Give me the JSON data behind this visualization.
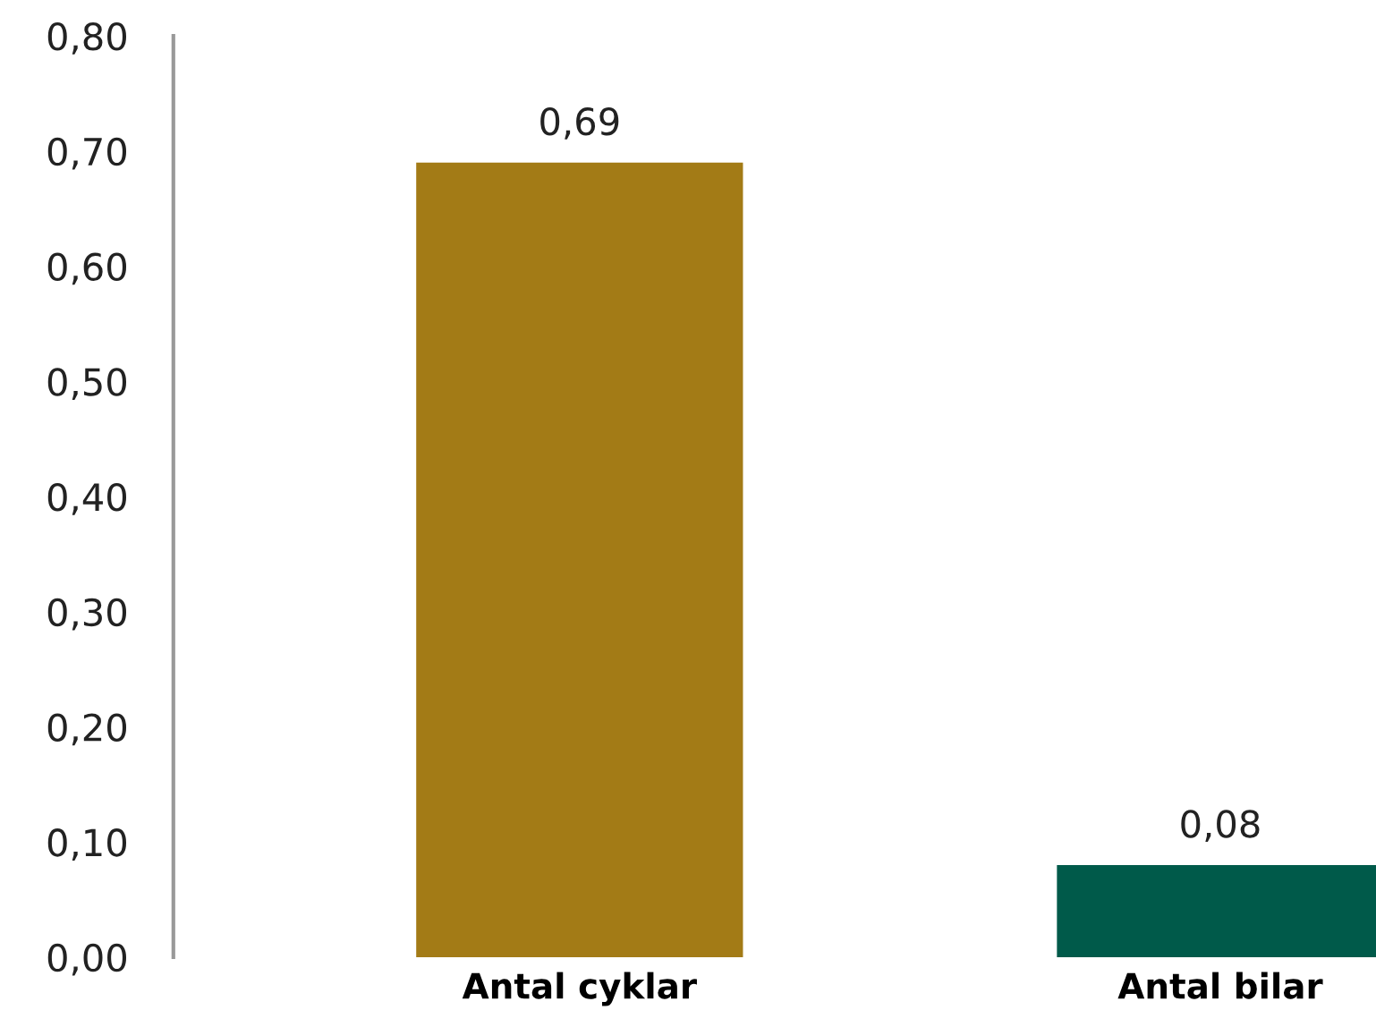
{
  "chart_data": {
    "type": "bar",
    "categories": [
      "Antal cyklar",
      "Antal bilar"
    ],
    "values": [
      0.69,
      0.08
    ],
    "colors": [
      "#a37b16",
      "#005a4a"
    ],
    "value_labels": [
      "0,69",
      "0,08"
    ],
    "ylim": [
      0,
      0.8
    ],
    "yticks": [
      {
        "value": 0,
        "label": "0,00"
      },
      {
        "value": 0.1,
        "label": "0,10"
      },
      {
        "value": 0.2,
        "label": "0,20"
      },
      {
        "value": 0.3,
        "label": "0,30"
      },
      {
        "value": 0.4,
        "label": "0,40"
      },
      {
        "value": 0.5,
        "label": "0,50"
      },
      {
        "value": 0.6,
        "label": "0,60"
      },
      {
        "value": 0.7,
        "label": "0,70"
      },
      {
        "value": 0.8,
        "label": "0,80"
      }
    ],
    "grid": false,
    "legend": false
  }
}
